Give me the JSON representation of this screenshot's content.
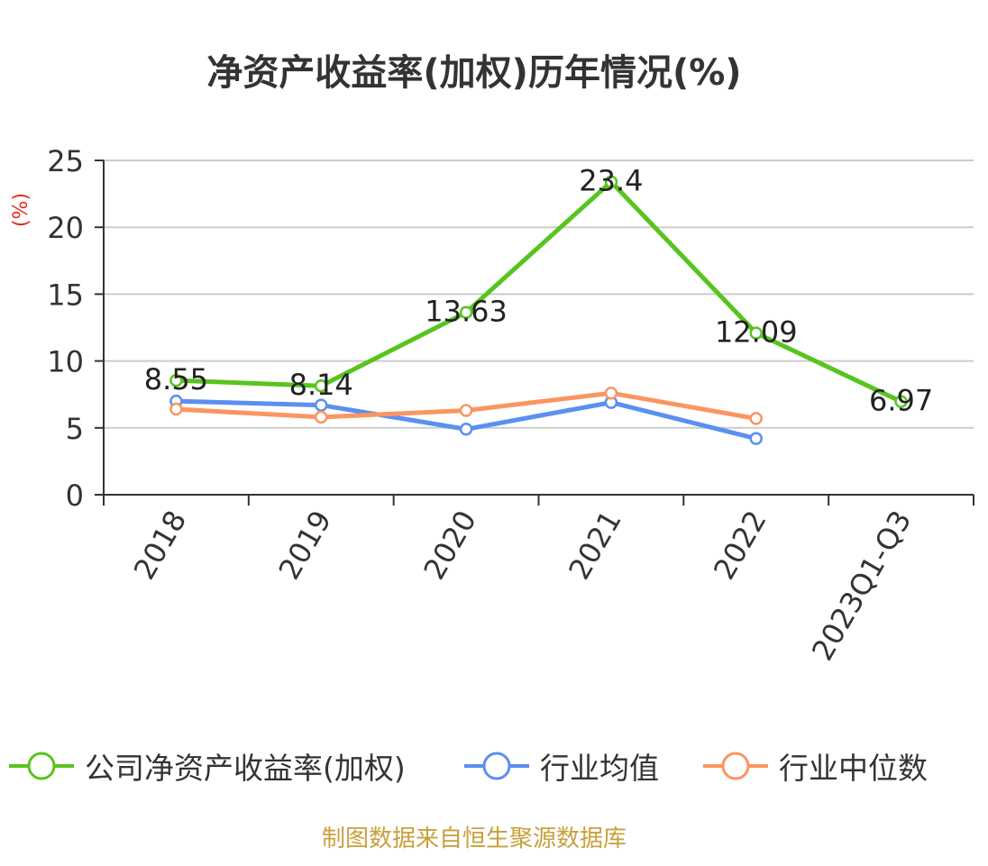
{
  "title": "净资产收益率(加权)历年情况(%)",
  "source_note": "制图数据来自恒生聚源数据库",
  "chart_data": {
    "type": "line",
    "title": "净资产收益率(加权)历年情况(%)",
    "ylabel": "(%)",
    "xlabel": "",
    "ylim": [
      0,
      25
    ],
    "yticks": [
      0,
      5,
      10,
      15,
      20,
      25
    ],
    "grid": true,
    "legend_position": "bottom",
    "categories": [
      "2018",
      "2019",
      "2020",
      "2021",
      "2022",
      "2023Q1-Q3"
    ],
    "series": [
      {
        "name": "公司净资产收益率(加权)",
        "color": "#58c41e",
        "values": [
          8.55,
          8.14,
          13.63,
          23.4,
          12.09,
          6.97
        ],
        "labels": [
          "8.55",
          "8.14",
          "13.63",
          "23.4",
          "12.09",
          "6.97"
        ]
      },
      {
        "name": "行业均值",
        "color": "#5b8ff0",
        "values": [
          7.0,
          6.7,
          4.9,
          6.9,
          4.2,
          null
        ]
      },
      {
        "name": "行业中位数",
        "color": "#fb9561",
        "values": [
          6.4,
          5.8,
          6.3,
          7.6,
          5.7,
          null
        ]
      }
    ]
  }
}
